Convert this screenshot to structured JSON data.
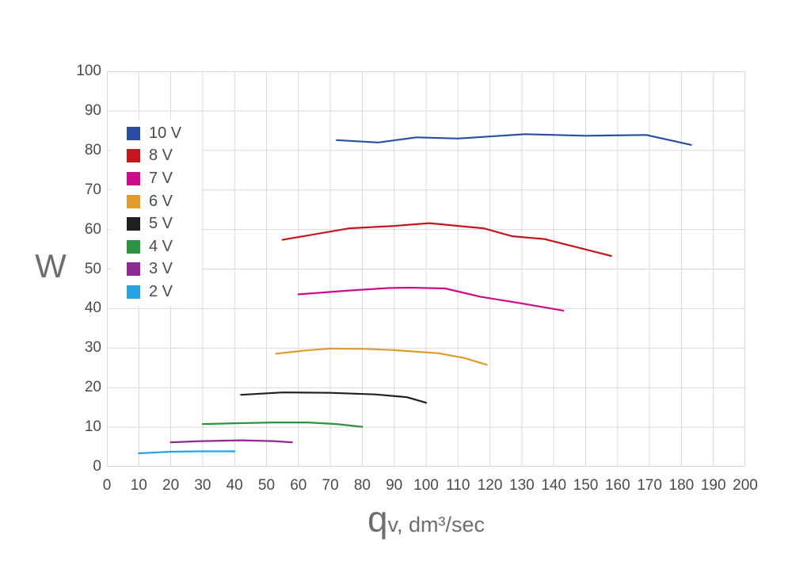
{
  "colors": {
    "grid": "#d9d9d9",
    "tick_text": "#4a4a4a",
    "axis_title_text": "#6e6e6e",
    "background": "#ffffff"
  },
  "chart_data": {
    "type": "line",
    "title": "",
    "ylabel": "W",
    "xlabel_symbol": "q",
    "xlabel_rest": "v, dm³/sec",
    "xlim": [
      0,
      200
    ],
    "ylim": [
      0,
      100
    ],
    "x_ticks": [
      0,
      10,
      20,
      30,
      40,
      50,
      60,
      70,
      80,
      90,
      100,
      110,
      120,
      130,
      140,
      150,
      160,
      170,
      180,
      190,
      200
    ],
    "y_ticks": [
      0,
      10,
      20,
      30,
      40,
      50,
      60,
      70,
      80,
      90,
      100
    ],
    "grid": true,
    "legend_position": "upper-left-inside",
    "marker": "none",
    "series": [
      {
        "name": "10 V",
        "color": "#2b4ea2",
        "points": [
          [
            72,
            82.6
          ],
          [
            85,
            82.0
          ],
          [
            97,
            83.3
          ],
          [
            110,
            83.0
          ],
          [
            131,
            84.1
          ],
          [
            150,
            83.7
          ],
          [
            169,
            83.9
          ],
          [
            183,
            81.4
          ]
        ]
      },
      {
        "name": "8 V",
        "color": "#c4161c",
        "points": [
          [
            55,
            57.4
          ],
          [
            76,
            60.3
          ],
          [
            90,
            60.9
          ],
          [
            101,
            61.6
          ],
          [
            118,
            60.3
          ],
          [
            127,
            58.3
          ],
          [
            137,
            57.6
          ],
          [
            158,
            53.3
          ]
        ]
      },
      {
        "name": "7 V",
        "color": "#ce0b8c",
        "points": [
          [
            60,
            43.6
          ],
          [
            75,
            44.5
          ],
          [
            88,
            45.2
          ],
          [
            95,
            45.3
          ],
          [
            106,
            45.1
          ],
          [
            117,
            43.0
          ],
          [
            130,
            41.3
          ],
          [
            143,
            39.5
          ]
        ]
      },
      {
        "name": "6 V",
        "color": "#df9c2d",
        "points": [
          [
            53,
            28.6
          ],
          [
            62,
            29.4
          ],
          [
            70,
            29.9
          ],
          [
            81,
            29.8
          ],
          [
            90,
            29.5
          ],
          [
            104,
            28.7
          ],
          [
            112,
            27.5
          ],
          [
            119,
            25.8
          ]
        ]
      },
      {
        "name": "5 V",
        "color": "#1f1f1f",
        "points": [
          [
            42,
            18.2
          ],
          [
            55,
            18.8
          ],
          [
            70,
            18.7
          ],
          [
            84,
            18.3
          ],
          [
            94,
            17.6
          ],
          [
            100,
            16.2
          ]
        ]
      },
      {
        "name": "4 V",
        "color": "#2e9245",
        "points": [
          [
            30,
            10.8
          ],
          [
            40,
            11.0
          ],
          [
            52,
            11.2
          ],
          [
            63,
            11.2
          ],
          [
            72,
            10.8
          ],
          [
            80,
            10.1
          ]
        ]
      },
      {
        "name": "3 V",
        "color": "#8d2a94",
        "points": [
          [
            20,
            6.2
          ],
          [
            30,
            6.5
          ],
          [
            42,
            6.7
          ],
          [
            52,
            6.5
          ],
          [
            58,
            6.2
          ]
        ]
      },
      {
        "name": "2 V",
        "color": "#29a3df",
        "points": [
          [
            10,
            3.4
          ],
          [
            20,
            3.8
          ],
          [
            30,
            3.9
          ],
          [
            40,
            3.9
          ]
        ]
      }
    ]
  }
}
